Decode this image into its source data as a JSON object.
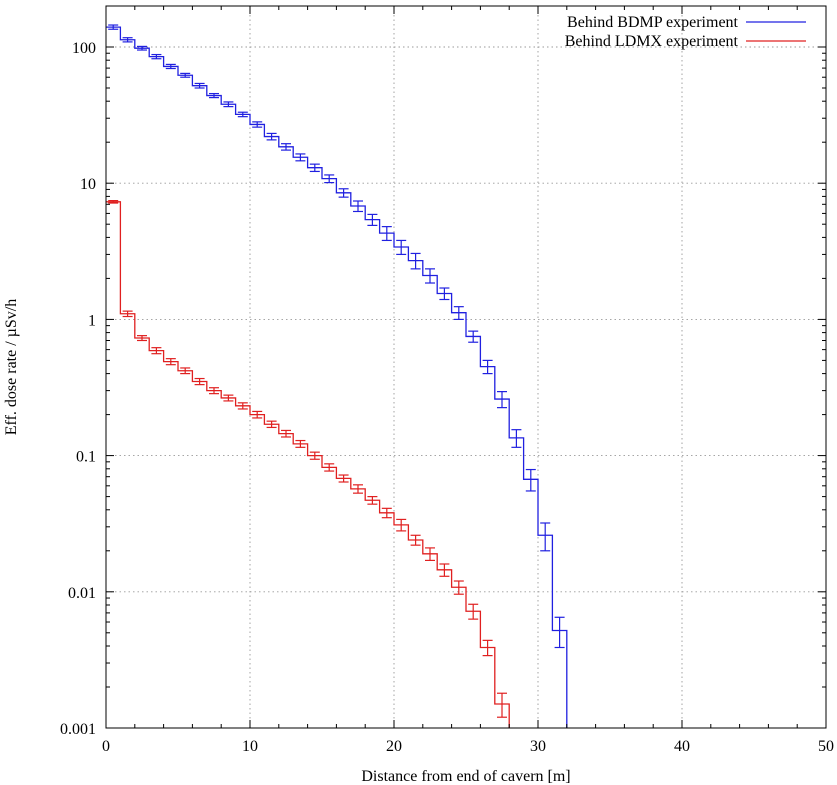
{
  "chart_data": {
    "type": "line",
    "title": "",
    "xlabel": "Distance from end of cavern [m]",
    "ylabel": "Eff. dose rate / µSv/h",
    "x_ticks": [
      "0",
      "10",
      "20",
      "30",
      "40",
      "50"
    ],
    "y_ticks": [
      "0.001",
      "0.01",
      "0.1",
      "1",
      "10",
      "100"
    ],
    "xlim": [
      0,
      50
    ],
    "ylim": [
      0.001,
      200
    ],
    "yscale": "log",
    "grid": true,
    "legend_position": "top-right",
    "bin_width": 1,
    "series": [
      {
        "name": "Behind BDMP experiment",
        "color": "#2020e0",
        "x": [
          0,
          1,
          2,
          3,
          4,
          5,
          6,
          7,
          8,
          9,
          10,
          11,
          12,
          13,
          14,
          15,
          16,
          17,
          18,
          19,
          20,
          21,
          22,
          23,
          24,
          25,
          26,
          27,
          28,
          29,
          30,
          31
        ],
        "y": [
          140,
          113,
          98,
          85,
          72,
          62,
          52,
          44,
          38,
          32,
          27,
          22,
          18.5,
          15.5,
          13,
          10.8,
          8.5,
          6.8,
          5.4,
          4.3,
          3.4,
          2.7,
          2.1,
          1.55,
          1.12,
          0.75,
          0.45,
          0.26,
          0.135,
          0.067,
          0.026,
          0.0052
        ],
        "err": [
          5,
          4,
          3,
          3,
          2.5,
          2,
          2,
          1.5,
          1.5,
          1.2,
          1.2,
          1.2,
          1,
          0.9,
          0.8,
          0.7,
          0.6,
          0.6,
          0.5,
          0.5,
          0.4,
          0.35,
          0.25,
          0.15,
          0.12,
          0.07,
          0.05,
          0.035,
          0.02,
          0.012,
          0.006,
          0.0013
        ]
      },
      {
        "name": "Behind LDMX experiment",
        "color": "#e02020",
        "x": [
          0,
          1,
          2,
          3,
          4,
          5,
          6,
          7,
          8,
          9,
          10,
          11,
          12,
          13,
          14,
          15,
          16,
          17,
          18,
          19,
          20,
          21,
          22,
          23,
          24,
          25,
          26,
          27
        ],
        "y": [
          7.3,
          1.1,
          0.73,
          0.59,
          0.49,
          0.42,
          0.35,
          0.3,
          0.265,
          0.232,
          0.2,
          0.17,
          0.145,
          0.122,
          0.1,
          0.082,
          0.068,
          0.057,
          0.047,
          0.038,
          0.031,
          0.024,
          0.019,
          0.0145,
          0.0108,
          0.0072,
          0.0039,
          0.0015
        ],
        "err": [
          0.15,
          0.05,
          0.03,
          0.03,
          0.025,
          0.02,
          0.018,
          0.015,
          0.013,
          0.012,
          0.011,
          0.009,
          0.008,
          0.007,
          0.006,
          0.005,
          0.004,
          0.004,
          0.003,
          0.003,
          0.003,
          0.002,
          0.002,
          0.0015,
          0.0012,
          0.0009,
          0.0005,
          0.0003
        ]
      }
    ]
  }
}
